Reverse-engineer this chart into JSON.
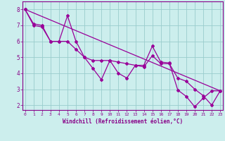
{
  "xlabel": "Windchill (Refroidissement éolien,°C)",
  "ylabel": "",
  "background_color": "#cceeed",
  "line_color": "#990099",
  "grid_color": "#99cccc",
  "axis_label_color": "#880088",
  "tick_label_color": "#880088",
  "x_ticks": [
    0,
    1,
    2,
    3,
    4,
    5,
    6,
    7,
    8,
    9,
    10,
    11,
    12,
    13,
    14,
    15,
    16,
    17,
    18,
    19,
    20,
    21,
    22,
    23
  ],
  "y_ticks": [
    2,
    3,
    4,
    5,
    6,
    7,
    8
  ],
  "xlim": [
    -0.3,
    23.3
  ],
  "ylim": [
    1.7,
    8.5
  ],
  "line1_x": [
    0,
    1,
    2,
    3,
    4,
    5,
    6,
    7,
    8,
    9,
    10,
    11,
    12,
    13,
    14,
    15,
    16,
    17,
    18,
    19,
    20,
    21,
    22,
    23
  ],
  "line1_y": [
    8.0,
    7.1,
    7.0,
    6.0,
    6.0,
    7.6,
    6.0,
    5.0,
    4.3,
    3.6,
    4.8,
    4.0,
    3.7,
    4.5,
    4.5,
    5.7,
    4.7,
    4.65,
    2.95,
    2.55,
    1.9,
    2.45,
    2.9,
    2.9
  ],
  "line2_x": [
    0,
    1,
    2,
    3,
    4,
    5,
    6,
    7,
    8,
    9,
    10,
    11,
    12,
    13,
    14,
    15,
    16,
    17,
    18,
    19,
    20,
    21,
    22,
    23
  ],
  "line2_y": [
    8.0,
    7.0,
    6.9,
    6.0,
    6.0,
    6.0,
    5.5,
    5.0,
    4.8,
    4.8,
    4.8,
    4.7,
    4.6,
    4.5,
    4.4,
    5.1,
    4.6,
    4.6,
    3.7,
    3.5,
    3.0,
    2.6,
    2.0,
    2.9
  ],
  "line3_x": [
    0,
    23
  ],
  "line3_y": [
    8.0,
    2.9
  ],
  "marker": "D",
  "markersize": 2,
  "linewidth": 0.9
}
